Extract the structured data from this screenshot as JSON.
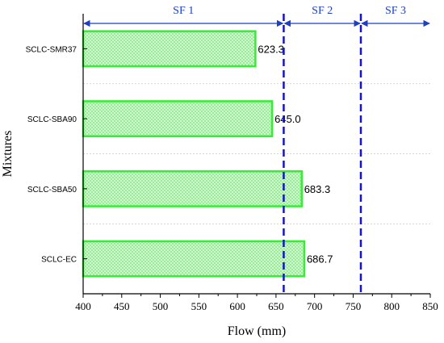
{
  "chart_data": {
    "type": "bar",
    "orientation": "horizontal",
    "categories": [
      "SCLC-SMR37",
      "SCLC-SBA90",
      "SCLC-SBA50",
      "SCLC-EC"
    ],
    "values": [
      623.3,
      645.0,
      683.3,
      686.7
    ],
    "value_labels": [
      "623.3",
      "645.0",
      "683.3",
      "686.7"
    ],
    "xlabel": "Flow (mm)",
    "ylabel": "Mixtures",
    "xlim": [
      400,
      850
    ],
    "xticks": [
      400,
      450,
      500,
      550,
      600,
      650,
      700,
      750,
      800,
      850
    ],
    "grid": "horizontal dotted between categories",
    "bar_fill": "#ccffcc",
    "bar_edge": "#33ee33",
    "bar_pattern": "crosshatch",
    "thresholds": [
      660,
      760
    ],
    "threshold_color": "#1414cc",
    "zones": [
      {
        "label": "SF 1",
        "from": 400,
        "to": 660
      },
      {
        "label": "SF 2",
        "from": 660,
        "to": 760
      },
      {
        "label": "SF 3",
        "from": 760,
        "to": 850
      }
    ],
    "zone_color": "#1f3fbf"
  }
}
